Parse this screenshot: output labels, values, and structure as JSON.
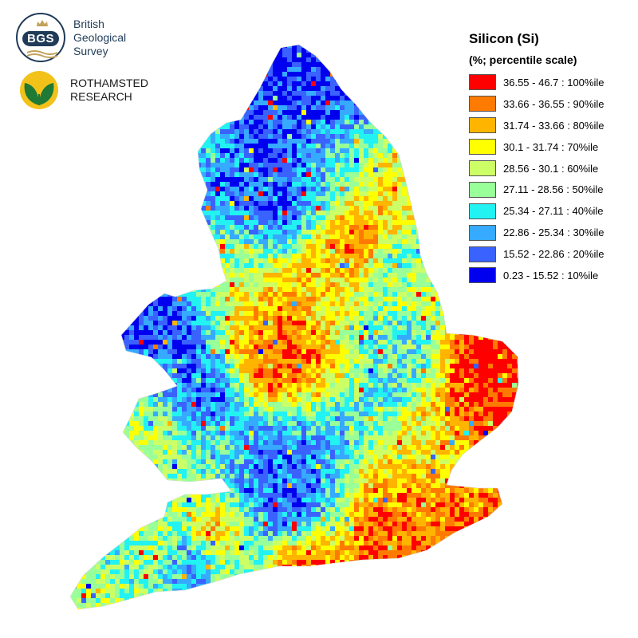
{
  "logos": {
    "bgs": {
      "badge_text": "BGS",
      "line1": "British",
      "line2": "Geological",
      "line3": "Survey",
      "colors": {
        "navy": "#1f3b57",
        "gold": "#c2a25b"
      }
    },
    "rothamsted": {
      "line1": "ROTHAMSTED",
      "line2": "RESEARCH",
      "colors": {
        "green": "#1e7a34",
        "yellow": "#f3c21a"
      }
    }
  },
  "legend": {
    "title": "Silicon (Si)",
    "subtitle": "(%; percentile scale)",
    "items": [
      {
        "label": "36.55 - 46.7 : 100%ile",
        "color": "#ff0000"
      },
      {
        "label": "33.66 - 36.55 : 90%ile",
        "color": "#ff7a00"
      },
      {
        "label": "31.74 - 33.66 : 80%ile",
        "color": "#ffb400"
      },
      {
        "label": "30.1 - 31.74 : 70%ile",
        "color": "#ffff00"
      },
      {
        "label": "28.56 - 30.1 : 60%ile",
        "color": "#ccff66"
      },
      {
        "label": "27.11 - 28.56 : 50%ile",
        "color": "#99ff99"
      },
      {
        "label": "25.34 - 27.11 : 40%ile",
        "color": "#22f2f2"
      },
      {
        "label": "22.86 - 25.34 : 30%ile",
        "color": "#36aaff"
      },
      {
        "label": "15.52 - 22.86 : 20%ile",
        "color": "#3a62ff"
      },
      {
        "label": "0.23 - 15.52 : 10%ile",
        "color": "#0000ee"
      }
    ]
  },
  "map": {
    "region": "England and Wales",
    "element": "Silicon (Si)"
  }
}
